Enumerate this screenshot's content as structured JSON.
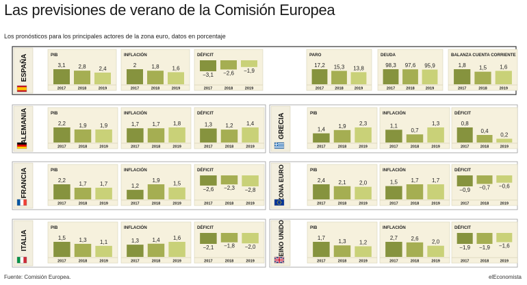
{
  "title": "Las previsiones de verano de la Comisión Europea",
  "subtitle": "Los pronósticos para los principales actores de la zona euro, datos en porcentaje",
  "source": "Fuente: Comisión Europea.",
  "credit": "elEconomista",
  "colors": {
    "dark": "#86933e",
    "mid": "#a5ae52",
    "light": "#c9d178",
    "panel": "#f6f1dd",
    "border": "#999999",
    "tab": "#f3efdf"
  },
  "chart_data": [
    {
      "type": "bar",
      "country": "ESPAÑA",
      "flag": "es",
      "panels": [
        {
          "title": "PIB",
          "categories": [
            "2017",
            "2018",
            "2019"
          ],
          "values": [
            3.1,
            2.8,
            2.4
          ],
          "labels": [
            "3,1",
            "2,8",
            "2,4"
          ]
        },
        {
          "title": "INFLACIÓN",
          "categories": [
            "2017",
            "2018",
            "2019"
          ],
          "values": [
            2.0,
            1.8,
            1.6
          ],
          "labels": [
            "2",
            "1,8",
            "1,6"
          ]
        },
        {
          "title": "DÉFICIT",
          "categories": [
            "2017",
            "2018",
            "2019"
          ],
          "values": [
            -3.1,
            -2.6,
            -1.9
          ],
          "labels": [
            "−3,1",
            "−2,6",
            "−1,9"
          ]
        },
        {
          "title": "PARO",
          "categories": [
            "2017",
            "2018",
            "2019"
          ],
          "values": [
            17.2,
            15.3,
            13.8
          ],
          "labels": [
            "17,2",
            "15,3",
            "13,8"
          ]
        },
        {
          "title": "DEUDA",
          "categories": [
            "2017",
            "2018",
            "2019"
          ],
          "values": [
            98.3,
            97.6,
            95.9
          ],
          "labels": [
            "98,3",
            "97,6",
            "95,9"
          ]
        },
        {
          "title": "BALANZA CUENTA CORRIENTE",
          "categories": [
            "2017",
            "2018",
            "2019"
          ],
          "values": [
            1.8,
            1.5,
            1.6
          ],
          "labels": [
            "1,8",
            "1,5",
            "1,6"
          ]
        }
      ]
    },
    {
      "type": "bar",
      "country": "ALEMANIA",
      "flag": "de",
      "panels": [
        {
          "title": "PIB",
          "categories": [
            "2017",
            "2018",
            "2019"
          ],
          "values": [
            2.2,
            1.9,
            1.9
          ],
          "labels": [
            "2,2",
            "1,9",
            "1,9"
          ]
        },
        {
          "title": "INFLACIÓN",
          "categories": [
            "2017",
            "2018",
            "2019"
          ],
          "values": [
            1.7,
            1.7,
            1.8
          ],
          "labels": [
            "1,7",
            "1,7",
            "1,8"
          ]
        },
        {
          "title": "DÉFICIT",
          "categories": [
            "2017",
            "2018",
            "2019"
          ],
          "values": [
            1.3,
            1.2,
            1.4
          ],
          "labels": [
            "1,3",
            "1,2",
            "1,4"
          ]
        }
      ]
    },
    {
      "type": "bar",
      "country": "GRECIA",
      "flag": "gr",
      "panels": [
        {
          "title": "PIB",
          "categories": [
            "2017",
            "2018",
            "2019"
          ],
          "values": [
            1.4,
            1.9,
            2.3
          ],
          "labels": [
            "1,4",
            "1,9",
            "2,3"
          ]
        },
        {
          "title": "INFLACIÓN",
          "categories": [
            "2017",
            "2018",
            "2019"
          ],
          "values": [
            1.1,
            0.7,
            1.3
          ],
          "labels": [
            "1,1",
            "0,7",
            "1,3"
          ]
        },
        {
          "title": "DÉFICIT",
          "categories": [
            "2017",
            "2018",
            "2019"
          ],
          "values": [
            0.8,
            0.4,
            0.2
          ],
          "labels": [
            "0,8",
            "0,4",
            "0,2"
          ]
        }
      ]
    },
    {
      "type": "bar",
      "country": "FRANCIA",
      "flag": "fr",
      "panels": [
        {
          "title": "PIB",
          "categories": [
            "2017",
            "2018",
            "2019"
          ],
          "values": [
            2.2,
            1.7,
            1.7
          ],
          "labels": [
            "2,2",
            "1,7",
            "1,7"
          ]
        },
        {
          "title": "INFLACIÓN",
          "categories": [
            "2017",
            "2018",
            "2019"
          ],
          "values": [
            1.2,
            1.9,
            1.5
          ],
          "labels": [
            "1,2",
            "1,9",
            "1,5"
          ]
        },
        {
          "title": "DÉFICIT",
          "categories": [
            "2017",
            "2018",
            "2019"
          ],
          "values": [
            -2.6,
            -2.3,
            -2.8
          ],
          "labels": [
            "−2,6",
            "−2,3",
            "−2,8"
          ]
        }
      ]
    },
    {
      "type": "bar",
      "country": "ZONA EURO",
      "flag": "eu",
      "panels": [
        {
          "title": "PIB",
          "categories": [
            "2017",
            "2018",
            "2019"
          ],
          "values": [
            2.4,
            2.1,
            2.0
          ],
          "labels": [
            "2,4",
            "2,1",
            "2,0"
          ]
        },
        {
          "title": "INFLACIÓN",
          "categories": [
            "2017",
            "2018",
            "2019"
          ],
          "values": [
            1.5,
            1.7,
            1.7
          ],
          "labels": [
            "1,5",
            "1,7",
            "1,7"
          ]
        },
        {
          "title": "DÉFICIT",
          "categories": [
            "2017",
            "2018",
            "2019"
          ],
          "values": [
            -0.9,
            -0.7,
            -0.6
          ],
          "labels": [
            "−0,9",
            "−0,7",
            "−0,6"
          ]
        }
      ]
    },
    {
      "type": "bar",
      "country": "ITALIA",
      "flag": "it",
      "panels": [
        {
          "title": "PIB",
          "categories": [
            "2017",
            "2018",
            "2019"
          ],
          "values": [
            1.5,
            1.3,
            1.1
          ],
          "labels": [
            "1,5",
            "1,3",
            "1,1"
          ]
        },
        {
          "title": "INFLACIÓN",
          "categories": [
            "2017",
            "2018",
            "2019"
          ],
          "values": [
            1.3,
            1.4,
            1.6
          ],
          "labels": [
            "1,3",
            "1,4",
            "1,6"
          ]
        },
        {
          "title": "DÉFICIT",
          "categories": [
            "2017",
            "2018",
            "2019"
          ],
          "values": [
            -2.1,
            -1.8,
            -2.0
          ],
          "labels": [
            "−2,1",
            "−1,8",
            "−2,0"
          ]
        }
      ]
    },
    {
      "type": "bar",
      "country": "REINO UNIDO",
      "flag": "uk",
      "panels": [
        {
          "title": "PIB",
          "categories": [
            "2017",
            "2018",
            "2019"
          ],
          "values": [
            1.7,
            1.3,
            1.2
          ],
          "labels": [
            "1,7",
            "1,3",
            "1,2"
          ]
        },
        {
          "title": "INFLACIÓN",
          "categories": [
            "2017",
            "2018",
            "2019"
          ],
          "values": [
            2.7,
            2.6,
            2.0
          ],
          "labels": [
            "2,7",
            "2,6",
            "2,0"
          ]
        },
        {
          "title": "DÉFICIT",
          "categories": [
            "2017",
            "2018",
            "2019"
          ],
          "values": [
            -1.9,
            -1.9,
            -1.6
          ],
          "labels": [
            "−1,9",
            "−1,9",
            "−1,6"
          ]
        }
      ]
    }
  ]
}
